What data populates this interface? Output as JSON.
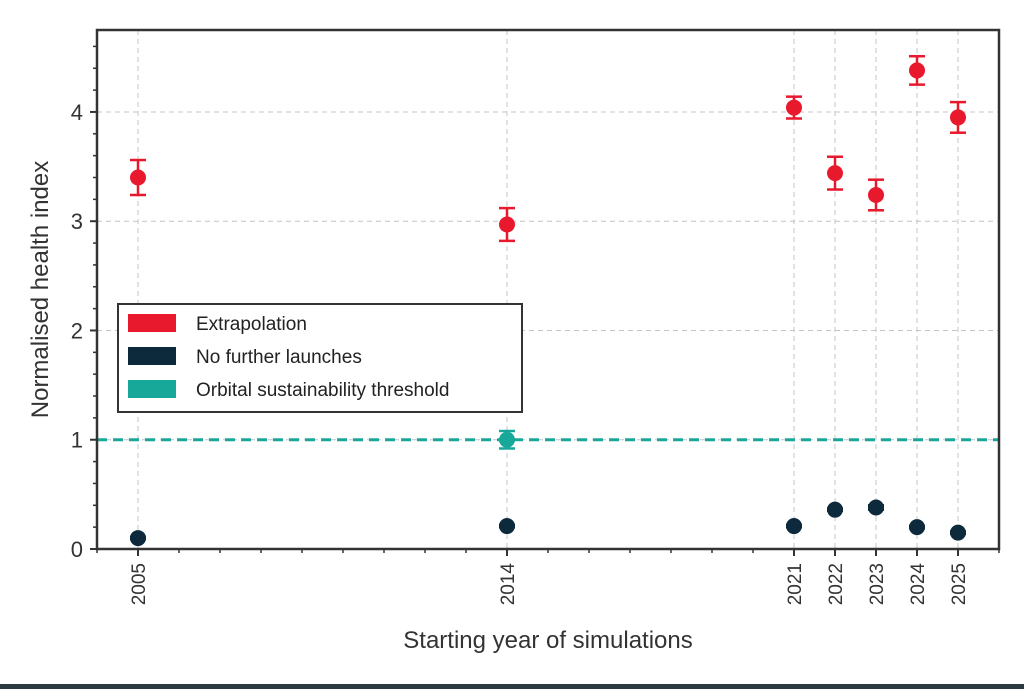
{
  "chart_data": {
    "type": "scatter",
    "title": "",
    "xlabel": "Starting year of simulations",
    "ylabel": "Normalised health index",
    "x_ticks": [
      "2005",
      "2014",
      "2021",
      "2022",
      "2023",
      "2024",
      "2025"
    ],
    "xlim": [
      2004,
      2026
    ],
    "ylim": [
      0,
      4.75
    ],
    "y_ticks": [
      "0",
      "1",
      "2",
      "3",
      "4"
    ],
    "grid": true,
    "legend_position": "center-left",
    "series": [
      {
        "name": "Extrapolation",
        "color": "#e8192c",
        "points": [
          {
            "x": 2005,
            "y": 3.4,
            "err": 0.16
          },
          {
            "x": 2014,
            "y": 2.97,
            "err": 0.15
          },
          {
            "x": 2021,
            "y": 4.04,
            "err": 0.1
          },
          {
            "x": 2022,
            "y": 3.44,
            "err": 0.15
          },
          {
            "x": 2023,
            "y": 3.24,
            "err": 0.14
          },
          {
            "x": 2024,
            "y": 4.38,
            "err": 0.13
          },
          {
            "x": 2025,
            "y": 3.95,
            "err": 0.14
          }
        ]
      },
      {
        "name": "No further launches",
        "color": "#0d2a3d",
        "points": [
          {
            "x": 2005,
            "y": 0.1,
            "err": 0.01
          },
          {
            "x": 2014,
            "y": 0.21,
            "err": 0.01
          },
          {
            "x": 2021,
            "y": 0.21,
            "err": 0.01
          },
          {
            "x": 2022,
            "y": 0.36,
            "err": 0.01
          },
          {
            "x": 2023,
            "y": 0.38,
            "err": 0.02
          },
          {
            "x": 2024,
            "y": 0.2,
            "err": 0.01
          },
          {
            "x": 2025,
            "y": 0.15,
            "err": 0.01
          }
        ]
      },
      {
        "name": "Orbital sustainability threshold",
        "color": "#17a89a",
        "line_y": 1,
        "points": [
          {
            "x": 2014,
            "y": 1.0,
            "err": 0.08
          }
        ]
      }
    ]
  }
}
